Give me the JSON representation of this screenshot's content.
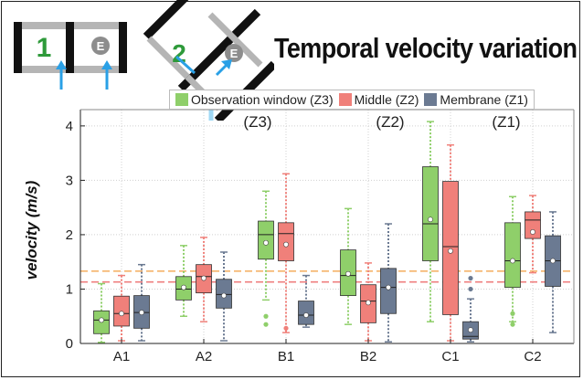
{
  "title": "Temporal velocity variation",
  "schematic": {
    "labels": [
      "1",
      "E",
      "2",
      "E"
    ]
  },
  "legend": [
    {
      "label": "Observation window (Z3)",
      "color": "#8fcf6a"
    },
    {
      "label": "Middle (Z2)",
      "color": "#f0807a"
    },
    {
      "label": "Membrane (Z1)",
      "color": "#6b7a92"
    }
  ],
  "zone_labels": [
    "(Z3)",
    "(Z2)",
    "(Z1)"
  ],
  "chart_data": {
    "type": "box",
    "ylabel": "velocity (m/s)",
    "ylim": [
      0,
      4.3
    ],
    "yticks": [
      0,
      1,
      2,
      3,
      4
    ],
    "categories": [
      "A1",
      "A2",
      "B1",
      "B2",
      "C1",
      "C2"
    ],
    "reference_lines": [
      {
        "value": 1.33,
        "color": "#f5b36b"
      },
      {
        "value": 1.13,
        "color": "#ef7f7f"
      }
    ],
    "series": [
      {
        "name": "Observation window (Z3)",
        "color": "#8fcf6a",
        "boxes": [
          {
            "min": 0.02,
            "q1": 0.18,
            "median": 0.43,
            "q3": 0.6,
            "max": 1.1,
            "mean": 0.43,
            "outliers": []
          },
          {
            "min": 0.5,
            "q1": 0.8,
            "median": 1.0,
            "q3": 1.23,
            "max": 1.8,
            "mean": 1.03,
            "outliers": []
          },
          {
            "min": 0.8,
            "q1": 1.55,
            "median": 2.0,
            "q3": 2.25,
            "max": 2.8,
            "mean": 1.85,
            "outliers": [
              0.35,
              0.5
            ]
          },
          {
            "min": 0.35,
            "q1": 0.88,
            "median": 1.25,
            "q3": 1.72,
            "max": 2.48,
            "mean": 1.28,
            "outliers": []
          },
          {
            "min": 0.4,
            "q1": 1.52,
            "median": 2.2,
            "q3": 3.25,
            "max": 4.08,
            "mean": 2.28,
            "outliers": []
          },
          {
            "min": 0.4,
            "q1": 1.03,
            "median": 1.52,
            "q3": 2.22,
            "max": 2.7,
            "mean": 1.52,
            "outliers": [
              0.35,
              0.55
            ]
          }
        ]
      },
      {
        "name": "Middle (Z2)",
        "color": "#f0807a",
        "boxes": [
          {
            "min": 0.05,
            "q1": 0.32,
            "median": 0.55,
            "q3": 0.87,
            "max": 1.25,
            "mean": 0.55,
            "outliers": []
          },
          {
            "min": 0.4,
            "q1": 0.93,
            "median": 1.23,
            "q3": 1.45,
            "max": 1.95,
            "mean": 1.2,
            "outliers": []
          },
          {
            "min": 0.2,
            "q1": 1.52,
            "median": 2.02,
            "q3": 2.22,
            "max": 3.12,
            "mean": 1.82,
            "outliers": [
              0.28
            ]
          },
          {
            "min": 0.05,
            "q1": 0.38,
            "median": 0.78,
            "q3": 1.08,
            "max": 1.48,
            "mean": 0.75,
            "outliers": []
          },
          {
            "min": 0.05,
            "q1": 0.53,
            "median": 1.78,
            "q3": 2.98,
            "max": 3.65,
            "mean": 1.7,
            "outliers": []
          },
          {
            "min": 1.3,
            "q1": 1.93,
            "median": 2.27,
            "q3": 2.42,
            "max": 2.72,
            "mean": 2.05,
            "outliers": []
          }
        ]
      },
      {
        "name": "Membrane (Z1)",
        "color": "#6b7a92",
        "boxes": [
          {
            "min": 0.05,
            "q1": 0.28,
            "median": 0.57,
            "q3": 0.88,
            "max": 1.45,
            "mean": 0.57,
            "outliers": []
          },
          {
            "min": 0.05,
            "q1": 0.65,
            "median": 0.9,
            "q3": 1.18,
            "max": 1.68,
            "mean": 0.88,
            "outliers": []
          },
          {
            "min": 0.3,
            "q1": 0.35,
            "median": 0.52,
            "q3": 0.78,
            "max": 1.25,
            "mean": 0.52,
            "outliers": []
          },
          {
            "min": 0.03,
            "q1": 0.55,
            "median": 1.03,
            "q3": 1.38,
            "max": 2.2,
            "mean": 1.03,
            "outliers": []
          },
          {
            "min": 0.03,
            "q1": 0.08,
            "median": 0.13,
            "q3": 0.4,
            "max": 0.82,
            "mean": 0.25,
            "outliers": [
              1.0,
              1.2
            ]
          },
          {
            "min": 0.2,
            "q1": 1.05,
            "median": 1.52,
            "q3": 1.98,
            "max": 2.42,
            "mean": 1.52,
            "outliers": []
          }
        ]
      }
    ]
  }
}
